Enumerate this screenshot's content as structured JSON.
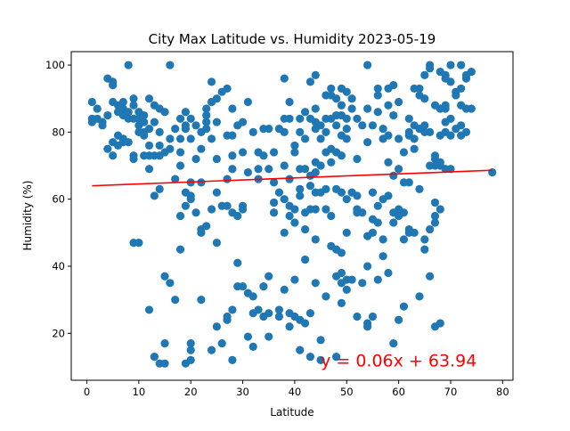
{
  "chart_data": {
    "type": "scatter",
    "title": "City Max Latitude vs. Humidity 2023-05-19",
    "xlabel": "Latitude",
    "ylabel": "Humidity (%)",
    "xlim": [
      -3,
      82
    ],
    "ylim": [
      6,
      104
    ],
    "x_ticks": [
      0,
      10,
      20,
      30,
      40,
      50,
      60,
      70,
      80
    ],
    "y_ticks": [
      20,
      40,
      60,
      80,
      100
    ],
    "x_tick_labels": [
      "0",
      "10",
      "20",
      "30",
      "40",
      "50",
      "60",
      "70",
      "80"
    ],
    "y_tick_labels": [
      "20",
      "40",
      "60",
      "80",
      "100"
    ],
    "grid": false,
    "point_color": "#1f77b4",
    "regression": {
      "slope": 0.06,
      "intercept": 63.94,
      "x_range": [
        1,
        78
      ],
      "color": "#ff0000",
      "equation": "y = 0.06x + 63.94",
      "label_x": 45,
      "label_y": 12
    },
    "points": [
      [
        1,
        84
      ],
      [
        1,
        83
      ],
      [
        1,
        89
      ],
      [
        2,
        87
      ],
      [
        2,
        84
      ],
      [
        3,
        83
      ],
      [
        3,
        82
      ],
      [
        4,
        85
      ],
      [
        4,
        75
      ],
      [
        4,
        96
      ],
      [
        5,
        95
      ],
      [
        5,
        94
      ],
      [
        5,
        89
      ],
      [
        5,
        77
      ],
      [
        5,
        73
      ],
      [
        6,
        88
      ],
      [
        6,
        86
      ],
      [
        6,
        79
      ],
      [
        6,
        76
      ],
      [
        7,
        89
      ],
      [
        7,
        87
      ],
      [
        7,
        85
      ],
      [
        7,
        78
      ],
      [
        7,
        77
      ],
      [
        8,
        100
      ],
      [
        8,
        86
      ],
      [
        8,
        84
      ],
      [
        8,
        77
      ],
      [
        9,
        90
      ],
      [
        9,
        88
      ],
      [
        9,
        84
      ],
      [
        9,
        73
      ],
      [
        9,
        72
      ],
      [
        9,
        47
      ],
      [
        10,
        86
      ],
      [
        10,
        84
      ],
      [
        10,
        82
      ],
      [
        10,
        80
      ],
      [
        10,
        47
      ],
      [
        11,
        85
      ],
      [
        11,
        83
      ],
      [
        11,
        80
      ],
      [
        11,
        79
      ],
      [
        11,
        73
      ],
      [
        12,
        90
      ],
      [
        12,
        81
      ],
      [
        12,
        76
      ],
      [
        12,
        73
      ],
      [
        12,
        69
      ],
      [
        12,
        27
      ],
      [
        13,
        88
      ],
      [
        13,
        83
      ],
      [
        13,
        73
      ],
      [
        13,
        61
      ],
      [
        13,
        13
      ],
      [
        14,
        87
      ],
      [
        14,
        80
      ],
      [
        14,
        76
      ],
      [
        14,
        73
      ],
      [
        14,
        63
      ],
      [
        14,
        11
      ],
      [
        15,
        86
      ],
      [
        15,
        74
      ],
      [
        15,
        37
      ],
      [
        15,
        17
      ],
      [
        15,
        11
      ],
      [
        16,
        100
      ],
      [
        16,
        78
      ],
      [
        16,
        75
      ],
      [
        16,
        35
      ],
      [
        17,
        81
      ],
      [
        17,
        66
      ],
      [
        17,
        30
      ],
      [
        18,
        84
      ],
      [
        18,
        78
      ],
      [
        18,
        74
      ],
      [
        18,
        70
      ],
      [
        18,
        55
      ],
      [
        18,
        45
      ],
      [
        19,
        86
      ],
      [
        19,
        82
      ],
      [
        19,
        81
      ],
      [
        19,
        62
      ],
      [
        19,
        58
      ],
      [
        19,
        11
      ],
      [
        20,
        84
      ],
      [
        20,
        78
      ],
      [
        20,
        65
      ],
      [
        20,
        61
      ],
      [
        20,
        60
      ],
      [
        20,
        17
      ],
      [
        20,
        15
      ],
      [
        20,
        12
      ],
      [
        21,
        82
      ],
      [
        21,
        72
      ],
      [
        21,
        56
      ],
      [
        22,
        80
      ],
      [
        22,
        75
      ],
      [
        22,
        65
      ],
      [
        22,
        51
      ],
      [
        22,
        50
      ],
      [
        22,
        30
      ],
      [
        23,
        87
      ],
      [
        23,
        85
      ],
      [
        23,
        83
      ],
      [
        23,
        81
      ],
      [
        23,
        52
      ],
      [
        24,
        95
      ],
      [
        24,
        89
      ],
      [
        24,
        78
      ],
      [
        24,
        57
      ],
      [
        24,
        15
      ],
      [
        25,
        90
      ],
      [
        25,
        83
      ],
      [
        25,
        72
      ],
      [
        25,
        62
      ],
      [
        25,
        47
      ],
      [
        25,
        22
      ],
      [
        26,
        92
      ],
      [
        26,
        58
      ],
      [
        26,
        17
      ],
      [
        27,
        93
      ],
      [
        27,
        79
      ],
      [
        27,
        66
      ],
      [
        27,
        58
      ],
      [
        27,
        25
      ],
      [
        27,
        24
      ],
      [
        28,
        87
      ],
      [
        28,
        79
      ],
      [
        28,
        73
      ],
      [
        28,
        69
      ],
      [
        28,
        56
      ],
      [
        28,
        27
      ],
      [
        28,
        12
      ],
      [
        29,
        82
      ],
      [
        29,
        55
      ],
      [
        29,
        41
      ],
      [
        29,
        34
      ],
      [
        30,
        83
      ],
      [
        30,
        74
      ],
      [
        30,
        58
      ],
      [
        30,
        57
      ],
      [
        30,
        34
      ],
      [
        31,
        89
      ],
      [
        31,
        68
      ],
      [
        31,
        32
      ],
      [
        31,
        19
      ],
      [
        32,
        80
      ],
      [
        32,
        31
      ],
      [
        32,
        26
      ],
      [
        32,
        16
      ],
      [
        33,
        74
      ],
      [
        33,
        69
      ],
      [
        33,
        66
      ],
      [
        33,
        27
      ],
      [
        34,
        81
      ],
      [
        34,
        73
      ],
      [
        34,
        34
      ],
      [
        34,
        25
      ],
      [
        35,
        81
      ],
      [
        35,
        69
      ],
      [
        35,
        37
      ],
      [
        35,
        26
      ],
      [
        35,
        19
      ],
      [
        36,
        74
      ],
      [
        36,
        65
      ],
      [
        36,
        59
      ],
      [
        36,
        56
      ],
      [
        37,
        81
      ],
      [
        37,
        62
      ],
      [
        37,
        27
      ],
      [
        37,
        25
      ],
      [
        38,
        96
      ],
      [
        38,
        84
      ],
      [
        38,
        80
      ],
      [
        38,
        70
      ],
      [
        38,
        60
      ],
      [
        38,
        50
      ],
      [
        38,
        33
      ],
      [
        39,
        89
      ],
      [
        39,
        84
      ],
      [
        39,
        66
      ],
      [
        39,
        58
      ],
      [
        39,
        55
      ],
      [
        39,
        26
      ],
      [
        39,
        22
      ],
      [
        40,
        76
      ],
      [
        40,
        74
      ],
      [
        40,
        57
      ],
      [
        40,
        53
      ],
      [
        40,
        36
      ],
      [
        40,
        25
      ],
      [
        41,
        84
      ],
      [
        41,
        80
      ],
      [
        41,
        69
      ],
      [
        41,
        63
      ],
      [
        41,
        61
      ],
      [
        41,
        24
      ],
      [
        41,
        15
      ],
      [
        42,
        86
      ],
      [
        42,
        78
      ],
      [
        42,
        69
      ],
      [
        42,
        56
      ],
      [
        42,
        51
      ],
      [
        42,
        42
      ],
      [
        42,
        23
      ],
      [
        43,
        95
      ],
      [
        43,
        84
      ],
      [
        43,
        67
      ],
      [
        43,
        64
      ],
      [
        43,
        57
      ],
      [
        43,
        26
      ],
      [
        43,
        13
      ],
      [
        44,
        97
      ],
      [
        44,
        87
      ],
      [
        44,
        83
      ],
      [
        44,
        81
      ],
      [
        44,
        71
      ],
      [
        44,
        68
      ],
      [
        44,
        62
      ],
      [
        44,
        57
      ],
      [
        44,
        48
      ],
      [
        44,
        35
      ],
      [
        45,
        82
      ],
      [
        45,
        78
      ],
      [
        45,
        70
      ],
      [
        45,
        62
      ],
      [
        45,
        18
      ],
      [
        45,
        12
      ],
      [
        46,
        91
      ],
      [
        46,
        84
      ],
      [
        46,
        80
      ],
      [
        46,
        74
      ],
      [
        46,
        63
      ],
      [
        46,
        57
      ],
      [
        46,
        31
      ],
      [
        47,
        93
      ],
      [
        47,
        91
      ],
      [
        47,
        84
      ],
      [
        47,
        75
      ],
      [
        47,
        71
      ],
      [
        47,
        55
      ],
      [
        47,
        46
      ],
      [
        48,
        90
      ],
      [
        48,
        85
      ],
      [
        48,
        82
      ],
      [
        48,
        74
      ],
      [
        48,
        63
      ],
      [
        48,
        45
      ],
      [
        48,
        37
      ],
      [
        48,
        13
      ],
      [
        49,
        93
      ],
      [
        49,
        88
      ],
      [
        49,
        85
      ],
      [
        49,
        79
      ],
      [
        49,
        73
      ],
      [
        49,
        62
      ],
      [
        49,
        44
      ],
      [
        49,
        38
      ],
      [
        49,
        35
      ],
      [
        49,
        29
      ],
      [
        50,
        92
      ],
      [
        50,
        84
      ],
      [
        50,
        81
      ],
      [
        50,
        78
      ],
      [
        50,
        60
      ],
      [
        50,
        50
      ],
      [
        50,
        36
      ],
      [
        50,
        33
      ],
      [
        51,
        90
      ],
      [
        51,
        87
      ],
      [
        51,
        62
      ],
      [
        51,
        36
      ],
      [
        52,
        84
      ],
      [
        52,
        72
      ],
      [
        52,
        61
      ],
      [
        52,
        57
      ],
      [
        52,
        56
      ],
      [
        52,
        25
      ],
      [
        53,
        82
      ],
      [
        53,
        56
      ],
      [
        53,
        35
      ],
      [
        54,
        100
      ],
      [
        54,
        87
      ],
      [
        54,
        77
      ],
      [
        54,
        49
      ],
      [
        54,
        40
      ],
      [
        54,
        23
      ],
      [
        54,
        22
      ],
      [
        55,
        82
      ],
      [
        55,
        62
      ],
      [
        55,
        54
      ],
      [
        55,
        50
      ],
      [
        55,
        25
      ],
      [
        56,
        93
      ],
      [
        56,
        91
      ],
      [
        56,
        86
      ],
      [
        56,
        58
      ],
      [
        56,
        53
      ],
      [
        56,
        36
      ],
      [
        57,
        81
      ],
      [
        57,
        78
      ],
      [
        57,
        60
      ],
      [
        57,
        48
      ],
      [
        57,
        43
      ],
      [
        58,
        93
      ],
      [
        58,
        88
      ],
      [
        58,
        79
      ],
      [
        58,
        71
      ],
      [
        58,
        61
      ],
      [
        58,
        38
      ],
      [
        59,
        94
      ],
      [
        59,
        85
      ],
      [
        59,
        67
      ],
      [
        59,
        56
      ],
      [
        59,
        53
      ],
      [
        59,
        17
      ],
      [
        60,
        89
      ],
      [
        60,
        78
      ],
      [
        60,
        69
      ],
      [
        60,
        57
      ],
      [
        60,
        55
      ],
      [
        60,
        24
      ],
      [
        61,
        74
      ],
      [
        61,
        65
      ],
      [
        61,
        56
      ],
      [
        61,
        48
      ],
      [
        61,
        28
      ],
      [
        62,
        84
      ],
      [
        62,
        80
      ],
      [
        62,
        79
      ],
      [
        62,
        65
      ],
      [
        62,
        51
      ],
      [
        62,
        50
      ],
      [
        63,
        93
      ],
      [
        63,
        82
      ],
      [
        63,
        78
      ],
      [
        63,
        75
      ],
      [
        63,
        50
      ],
      [
        64,
        93
      ],
      [
        64,
        91
      ],
      [
        64,
        81
      ],
      [
        64,
        63
      ],
      [
        64,
        31
      ],
      [
        65,
        97
      ],
      [
        65,
        90
      ],
      [
        65,
        82
      ],
      [
        65,
        80
      ],
      [
        65,
        48
      ],
      [
        65,
        45
      ],
      [
        66,
        100
      ],
      [
        66,
        99
      ],
      [
        66,
        80
      ],
      [
        66,
        70
      ],
      [
        66,
        51
      ],
      [
        66,
        37
      ],
      [
        67,
        88
      ],
      [
        67,
        73
      ],
      [
        67,
        72
      ],
      [
        67,
        70
      ],
      [
        67,
        59
      ],
      [
        67,
        55
      ],
      [
        67,
        53
      ],
      [
        67,
        22
      ],
      [
        68,
        98
      ],
      [
        68,
        87
      ],
      [
        68,
        79
      ],
      [
        68,
        71
      ],
      [
        68,
        70
      ],
      [
        68,
        57
      ],
      [
        68,
        23
      ],
      [
        69,
        97
      ],
      [
        69,
        96
      ],
      [
        69,
        88
      ],
      [
        69,
        87
      ],
      [
        69,
        83
      ],
      [
        69,
        80
      ],
      [
        69,
        69
      ],
      [
        70,
        100
      ],
      [
        70,
        95
      ],
      [
        70,
        84
      ],
      [
        70,
        79
      ],
      [
        70,
        69
      ],
      [
        71,
        92
      ],
      [
        71,
        91
      ],
      [
        71,
        81
      ],
      [
        72,
        100
      ],
      [
        72,
        93
      ],
      [
        72,
        88
      ],
      [
        72,
        82
      ],
      [
        72,
        79
      ],
      [
        73,
        97
      ],
      [
        73,
        96
      ],
      [
        73,
        87
      ],
      [
        73,
        80
      ],
      [
        74,
        98
      ],
      [
        74,
        87
      ],
      [
        78,
        68
      ]
    ]
  }
}
